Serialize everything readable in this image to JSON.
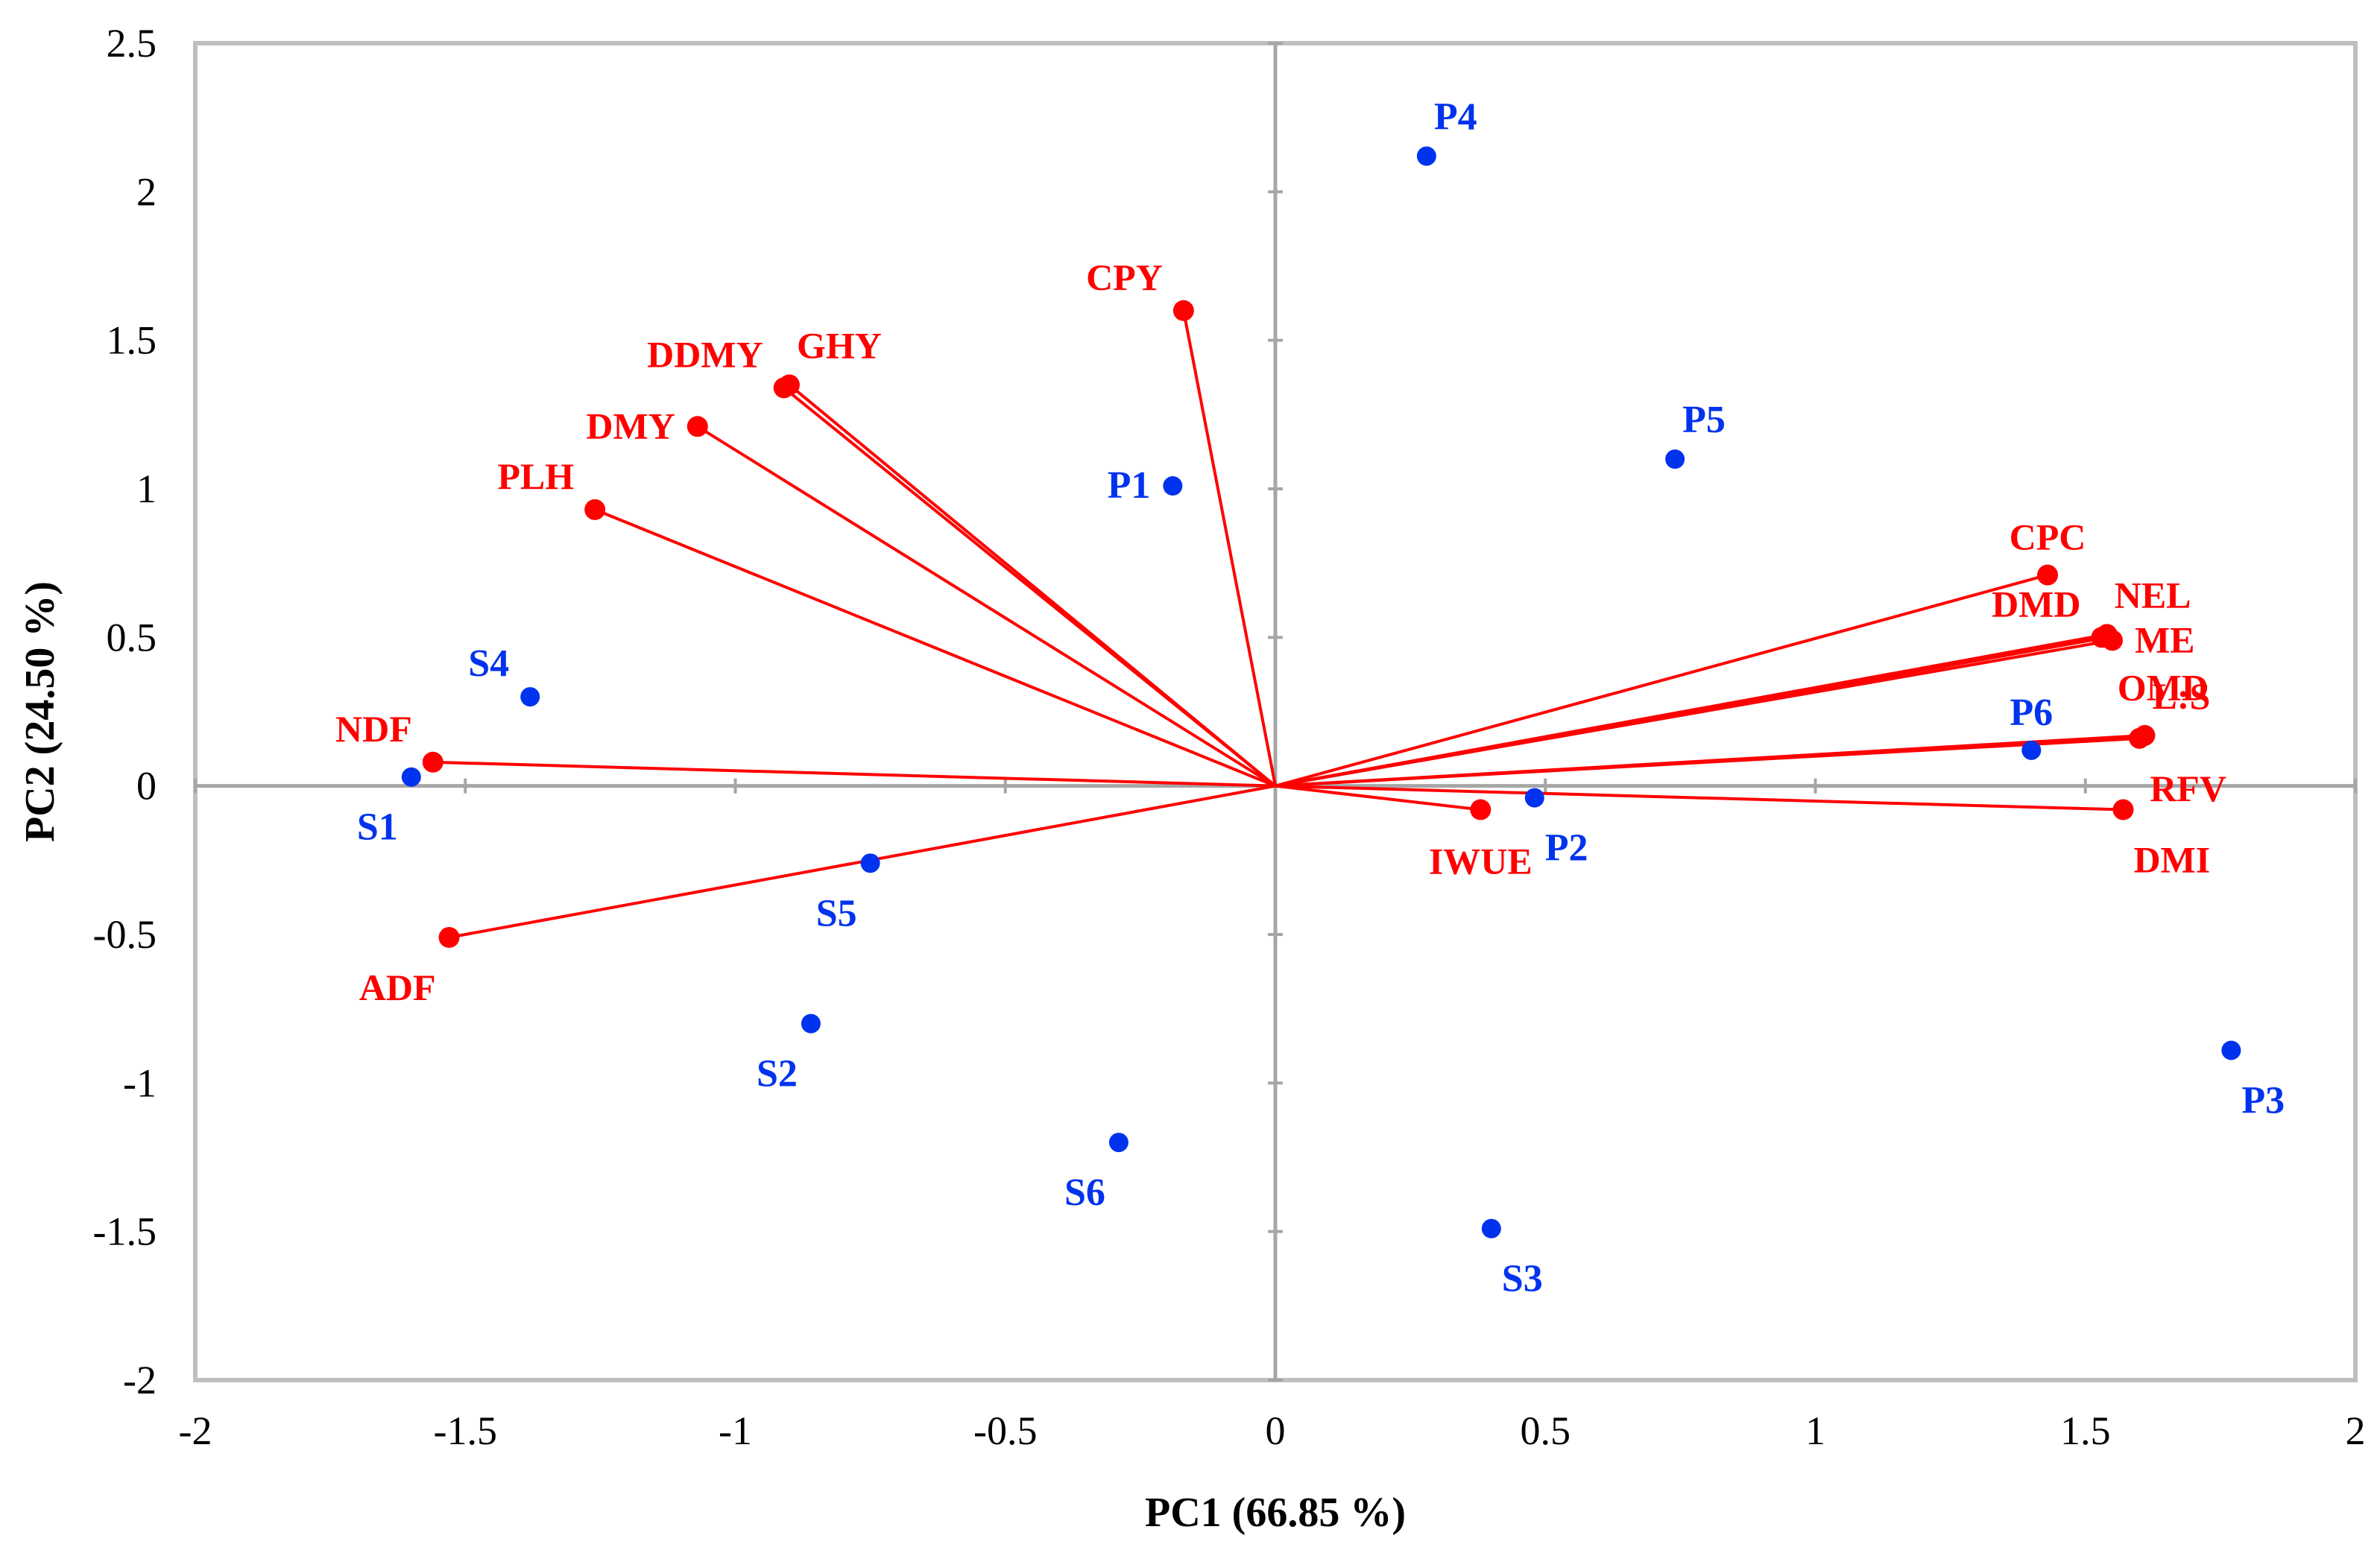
{
  "chart_data": {
    "type": "scatter",
    "title": "",
    "xlabel": "PC1 (66.85 %)",
    "ylabel": "PC2 (24.50 %)",
    "xlim": [
      -2,
      2
    ],
    "ylim": [
      -2,
      2.5
    ],
    "x_ticks": [
      -2,
      -1.5,
      -1,
      -0.5,
      0,
      0.5,
      1,
      1.5,
      2
    ],
    "x_tick_labels": [
      "-2",
      "-1.5",
      "-1",
      "-0.5",
      "0",
      "0.5",
      "1",
      "1.5",
      "2"
    ],
    "y_ticks": [
      -2,
      -1.5,
      -1,
      -0.5,
      0,
      0.5,
      1,
      1.5,
      2,
      2.5
    ],
    "y_tick_labels": [
      "-2",
      "-1.5",
      "-1",
      "-0.5",
      "0",
      "0.5",
      "1",
      "1.5",
      "2",
      "2.5"
    ],
    "grid": false,
    "colors": {
      "variables": "#ff0000",
      "observations": "#0033ee",
      "axes": "#a6a6a6",
      "frame": "#bfbfbf"
    },
    "series": [
      {
        "name": "variables",
        "vectors": true,
        "points": [
          {
            "label": "CPY",
            "x": -0.17,
            "y": 1.6,
            "anchor": "upper-left"
          },
          {
            "label": "GHY",
            "x": -0.9,
            "y": 1.35,
            "anchor": "upper-right"
          },
          {
            "label": "DDMY",
            "x": -0.91,
            "y": 1.34,
            "anchor": "upper-left"
          },
          {
            "label": "DMY",
            "x": -1.07,
            "y": 1.21,
            "anchor": "left"
          },
          {
            "label": "PLH",
            "x": -1.26,
            "y": 0.93,
            "anchor": "upper-left"
          },
          {
            "label": "NDF",
            "x": -1.56,
            "y": 0.08,
            "anchor": "upper-left"
          },
          {
            "label": "ADF",
            "x": -1.53,
            "y": -0.51,
            "anchor": "lower-left"
          },
          {
            "label": "CPC",
            "x": 1.43,
            "y": 0.71,
            "anchor": "upper"
          },
          {
            "label": "NEL",
            "x": 1.54,
            "y": 0.51,
            "anchor": "upper-right"
          },
          {
            "label": "DMD",
            "x": 1.53,
            "y": 0.5,
            "anchor": "upper-left"
          },
          {
            "label": "ME",
            "x": 1.55,
            "y": 0.49,
            "anchor": "right"
          },
          {
            "label": "OMD",
            "x": 1.54,
            "y": 0.5,
            "anchor": "lower-right"
          },
          {
            "label": "L:S",
            "x": 1.61,
            "y": 0.17,
            "anchor": "upper-right"
          },
          {
            "label": "RFV",
            "x": 1.6,
            "y": 0.16,
            "anchor": "lower-right"
          },
          {
            "label": "DMI",
            "x": 1.57,
            "y": -0.08,
            "anchor": "lower-right"
          },
          {
            "label": "IWUE",
            "x": 0.38,
            "y": -0.08,
            "anchor": "lower"
          }
        ]
      },
      {
        "name": "observations",
        "vectors": false,
        "points": [
          {
            "label": "P1",
            "x": -0.19,
            "y": 1.01,
            "anchor": "left"
          },
          {
            "label": "P2",
            "x": 0.48,
            "y": -0.04,
            "anchor": "lower-right"
          },
          {
            "label": "P3",
            "x": 1.77,
            "y": -0.89,
            "anchor": "lower-right"
          },
          {
            "label": "P4",
            "x": 0.28,
            "y": 2.12,
            "anchor": "upper-right"
          },
          {
            "label": "P5",
            "x": 0.74,
            "y": 1.1,
            "anchor": "upper-right"
          },
          {
            "label": "P6",
            "x": 1.4,
            "y": 0.12,
            "anchor": "upper"
          },
          {
            "label": "S1",
            "x": -1.6,
            "y": 0.03,
            "anchor": "lower-left"
          },
          {
            "label": "S2",
            "x": -0.86,
            "y": -0.8,
            "anchor": "lower-left"
          },
          {
            "label": "S3",
            "x": 0.4,
            "y": -1.49,
            "anchor": "lower-right"
          },
          {
            "label": "S4",
            "x": -1.38,
            "y": 0.3,
            "anchor": "upper-left"
          },
          {
            "label": "S5",
            "x": -0.75,
            "y": -0.26,
            "anchor": "lower-left"
          },
          {
            "label": "S6",
            "x": -0.29,
            "y": -1.2,
            "anchor": "lower-left"
          }
        ]
      }
    ]
  }
}
